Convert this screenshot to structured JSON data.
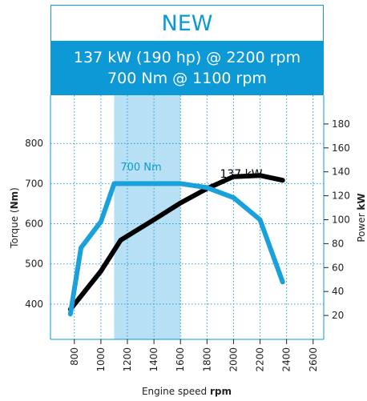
{
  "header": {
    "title": "NEW",
    "spec_line_1": "137 kW (190 hp) @ 2200 rpm",
    "spec_line_2": "700 Nm @ 1100 rpm"
  },
  "colors": {
    "accent": "#0c99d6",
    "band": "#b7e0f4",
    "power_line": "#000000",
    "torque_line": "#1aa0da",
    "grid": "#1aa0da"
  },
  "chart_data": {
    "type": "line",
    "xlabel_prefix": "Engine speed",
    "xlabel_unit": "rpm",
    "ylabel_left_prefix": "Torque (",
    "ylabel_left_unit": "Nm",
    "ylabel_left_suffix": ")",
    "ylabel_right_prefix": "Power",
    "ylabel_right_unit": "kW",
    "x_ticks": [
      800,
      1000,
      1200,
      1400,
      1600,
      1800,
      2000,
      2200,
      2400,
      2600
    ],
    "x_tick_labels": [
      "800",
      "1000",
      "1200",
      "1400",
      "1600",
      "1800",
      "2000",
      "2200",
      "2400",
      "2600"
    ],
    "y_left_ticks": [
      400,
      500,
      600,
      700,
      800
    ],
    "y_left_tick_labels": [
      "400",
      "500",
      "600",
      "700",
      "800"
    ],
    "y_right_ticks": [
      20,
      40,
      60,
      80,
      100,
      120,
      140,
      160,
      180
    ],
    "y_right_tick_labels": [
      "20",
      "40",
      "60",
      "80",
      "100",
      "120",
      "140",
      "160",
      "180"
    ],
    "xlim": [
      620,
      2680
    ],
    "ylim_left": [
      312,
      920
    ],
    "ylim_right": [
      0,
      204
    ],
    "grid": true,
    "highlight_band": [
      1100,
      1600
    ],
    "series": [
      {
        "name": "700 Nm",
        "axis": "left",
        "x": [
          770,
          850,
          1000,
          1100,
          1600,
          1800,
          2000,
          2200,
          2370
        ],
        "y": [
          375,
          540,
          605,
          700,
          700,
          690,
          665,
          610,
          455
        ]
      },
      {
        "name": "137 kW",
        "axis": "right",
        "x": [
          770,
          1000,
          1150,
          1400,
          1600,
          1800,
          2000,
          2200,
          2370
        ],
        "y": [
          25,
          57,
          83,
          100,
          114,
          126,
          136,
          137,
          133
        ]
      }
    ]
  }
}
